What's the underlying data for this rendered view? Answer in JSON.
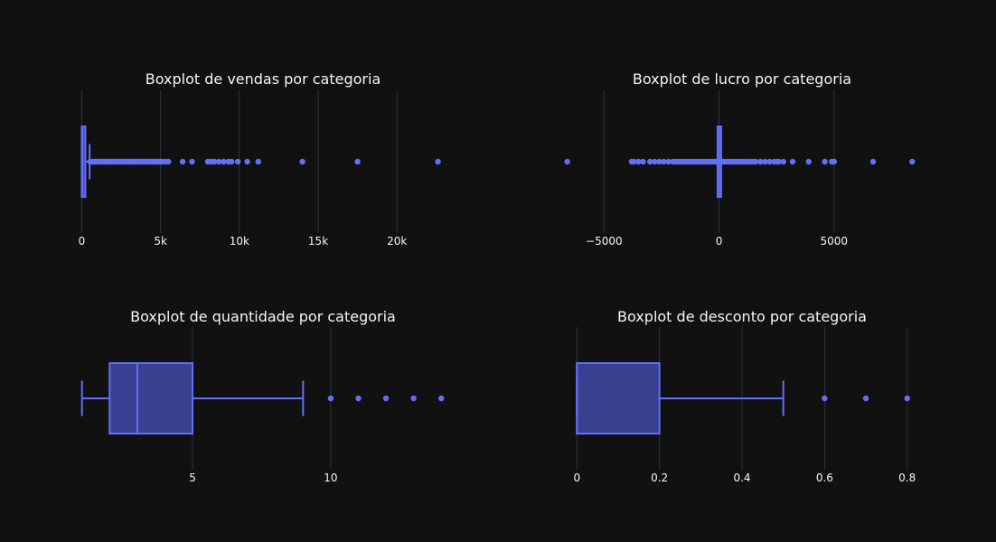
{
  "chart_data": [
    {
      "type": "box",
      "title": "Boxplot de vendas por categoria",
      "xlabel": "",
      "ylabel": "",
      "xlim": [
        -600,
        23600
      ],
      "ticks": [
        0,
        5000,
        10000,
        15000,
        20000
      ],
      "tick_labels": [
        "0",
        "5k",
        "10k",
        "15k",
        "20k"
      ],
      "grid": true,
      "box": {
        "min": 0.4,
        "q1": 17,
        "median": 55,
        "q3": 210,
        "upper_fence": 498,
        "color": "#636efa",
        "fill": "#3a408f"
      },
      "outliers": [
        520,
        600,
        700,
        800,
        900,
        1000,
        1100,
        1200,
        1300,
        1400,
        1500,
        1600,
        1700,
        1800,
        1900,
        2000,
        2100,
        2200,
        2300,
        2400,
        2500,
        2600,
        2700,
        2800,
        2900,
        3000,
        3100,
        3200,
        3300,
        3400,
        3500,
        3600,
        3700,
        3800,
        3900,
        4000,
        4100,
        4200,
        4300,
        4400,
        4500,
        4600,
        4700,
        4800,
        4900,
        5000,
        5100,
        5300,
        5500,
        6400,
        7000,
        8000,
        8200,
        8400,
        8700,
        9000,
        9300,
        9500,
        9900,
        10500,
        11200,
        14000,
        17500,
        22600
      ]
    },
    {
      "type": "box",
      "title": "Boxplot de lucro por categoria",
      "xlabel": "",
      "ylabel": "",
      "xlim": [
        -6900,
        8900
      ],
      "ticks": [
        -5000,
        0,
        5000
      ],
      "tick_labels": [
        "−5000",
        "0",
        "5000"
      ],
      "grid": true,
      "box": {
        "lower_fence": -40,
        "q1": 2,
        "median": 9,
        "q3": 29,
        "upper_fence": 70,
        "color": "#636efa",
        "fill": "#3a408f"
      },
      "outliers": [
        -6600,
        -3800,
        -3700,
        -3500,
        -3300,
        -3000,
        -2800,
        -2600,
        -2400,
        -2200,
        -2000,
        -1900,
        -1800,
        -1700,
        -1600,
        -1500,
        -1400,
        -1300,
        -1200,
        -1100,
        -1000,
        -900,
        -800,
        -700,
        -600,
        -500,
        -400,
        -300,
        -200,
        -150,
        -100,
        100,
        150,
        200,
        300,
        400,
        500,
        600,
        700,
        800,
        900,
        1000,
        1100,
        1200,
        1300,
        1400,
        1500,
        1600,
        1800,
        2000,
        2200,
        2400,
        2500,
        2600,
        2800,
        3200,
        3900,
        4600,
        4900,
        5000,
        6700,
        8400
      ]
    },
    {
      "type": "box",
      "title": "Boxplot de quantidade por categoria",
      "xlabel": "",
      "ylabel": "",
      "xlim": [
        0.65,
        14.45
      ],
      "ticks": [
        5,
        10
      ],
      "tick_labels": [
        "5",
        "10"
      ],
      "grid": true,
      "box": {
        "min": 1,
        "q1": 2,
        "median": 3,
        "q3": 5,
        "upper_fence": 9,
        "color": "#636efa",
        "fill": "#3a408f"
      },
      "outliers": [
        10,
        11,
        12,
        13,
        14
      ]
    },
    {
      "type": "box",
      "title": "Boxplot de desconto por categoria",
      "xlabel": "",
      "ylabel": "",
      "xlim": [
        -0.04,
        0.84
      ],
      "ticks": [
        0,
        0.2,
        0.4,
        0.6,
        0.8
      ],
      "tick_labels": [
        "0",
        "0.2",
        "0.4",
        "0.6",
        "0.8"
      ],
      "grid": true,
      "box": {
        "min": 0,
        "q1": 0,
        "median": 0,
        "q3": 0.2,
        "upper_fence": 0.5,
        "color": "#636efa",
        "fill": "#3a408f"
      },
      "outliers": [
        0.6,
        0.7,
        0.8
      ]
    }
  ]
}
